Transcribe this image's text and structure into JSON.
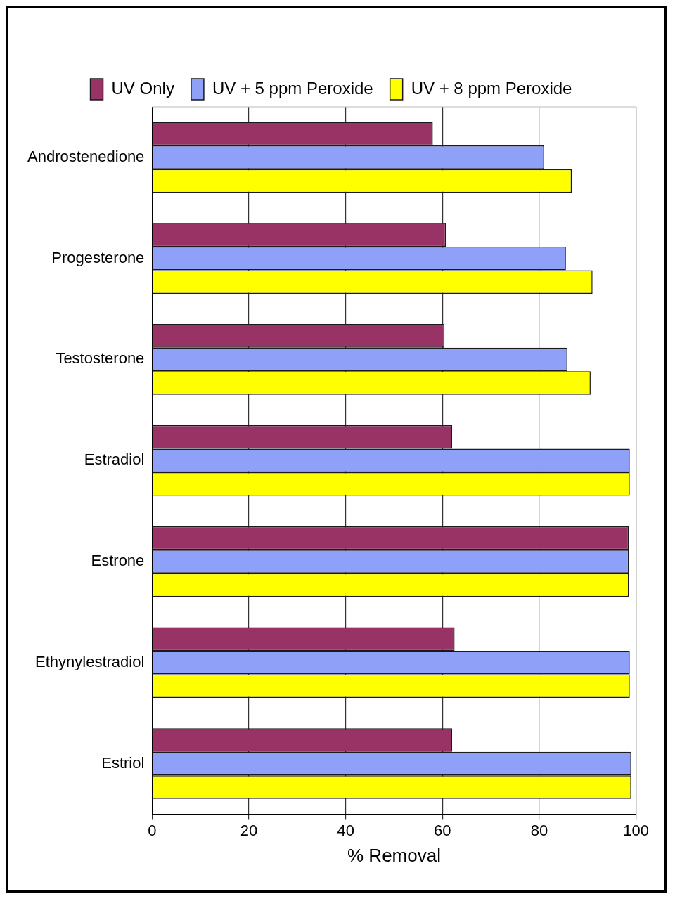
{
  "chart_data": {
    "type": "bar",
    "orientation": "horizontal",
    "xlabel": "% Removal",
    "categories": [
      "Androstenedione",
      "Progesterone",
      "Testosterone",
      "Estradiol",
      "Estrone",
      "Ethynylestradiol",
      "Estriol"
    ],
    "series": [
      {
        "name": "UV Only",
        "color": "#993366",
        "values": [
          58,
          60.7,
          60.4,
          62,
          98.5,
          62.5,
          62
        ]
      },
      {
        "name": "UV + 5 ppm Peroxide",
        "color": "#8fa0f8",
        "values": [
          81,
          85.5,
          85.8,
          98.7,
          98.5,
          98.7,
          99
        ]
      },
      {
        "name": "UV + 8 ppm Peroxide",
        "color": "#ffff00",
        "values": [
          86.7,
          91,
          90.6,
          98.7,
          98.5,
          98.7,
          99
        ]
      }
    ],
    "xlim": [
      0,
      100
    ],
    "xticks": [
      0,
      20,
      40,
      60,
      80,
      100
    ],
    "grid": "x",
    "legend": "top"
  }
}
